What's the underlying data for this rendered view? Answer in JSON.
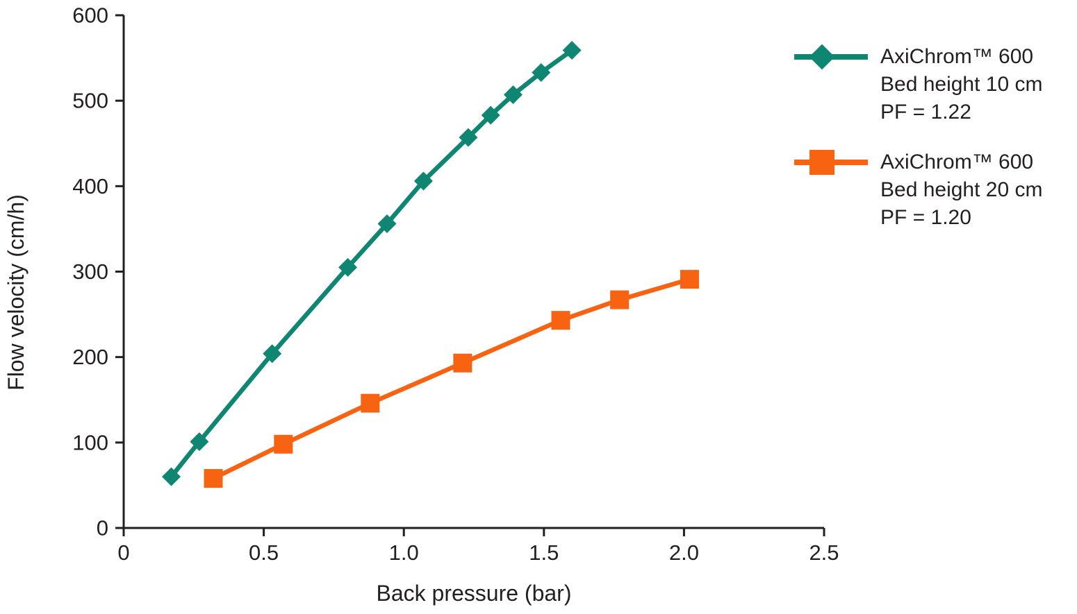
{
  "chart_data": {
    "type": "line",
    "title": "",
    "xlabel": "Back pressure (bar)",
    "ylabel": "Flow velocity (cm/h)",
    "xlim": [
      0,
      2.5
    ],
    "ylim": [
      0,
      600
    ],
    "x_ticks": [
      0,
      0.5,
      1.0,
      1.5,
      2.0,
      2.5
    ],
    "x_tick_labels": [
      "0",
      "0.5",
      "1.0",
      "1.5",
      "2.0",
      "2.5"
    ],
    "y_ticks": [
      0,
      100,
      200,
      300,
      400,
      500,
      600
    ],
    "y_tick_labels": [
      "0",
      "100",
      "200",
      "300",
      "400",
      "500",
      "600"
    ],
    "grid": false,
    "legend_position": "top-right",
    "axis_color": "#231F20",
    "series": [
      {
        "name": "AxiChrom™ 600 Bed height 10 cm PF = 1.22",
        "label_lines": [
          "AxiChrom™ 600",
          "Bed height 10 cm",
          "PF = 1.22"
        ],
        "marker": "diamond",
        "color": "#0E8672",
        "points": [
          [
            0.17,
            60
          ],
          [
            0.27,
            101
          ],
          [
            0.53,
            204
          ],
          [
            0.8,
            305
          ],
          [
            0.94,
            356
          ],
          [
            1.07,
            406
          ],
          [
            1.23,
            457
          ],
          [
            1.31,
            483
          ],
          [
            1.39,
            507
          ],
          [
            1.49,
            533
          ],
          [
            1.6,
            559
          ]
        ]
      },
      {
        "name": "AxiChrom™ 600 Bed height 20 cm PF = 1.20",
        "label_lines": [
          "AxiChrom™ 600",
          "Bed height 20 cm",
          "PF = 1.20"
        ],
        "marker": "square",
        "color": "#F76310",
        "points": [
          [
            0.32,
            58
          ],
          [
            0.57,
            98
          ],
          [
            0.88,
            146
          ],
          [
            1.21,
            193
          ],
          [
            1.56,
            243
          ],
          [
            1.77,
            267
          ],
          [
            2.02,
            291
          ]
        ]
      }
    ]
  }
}
